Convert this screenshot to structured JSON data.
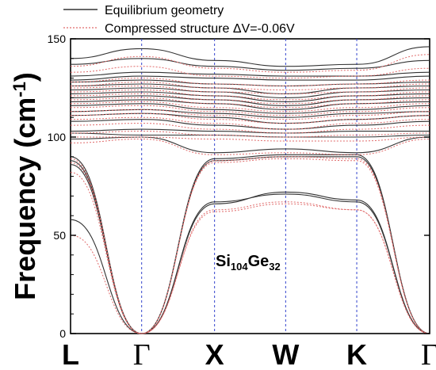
{
  "chart_data": {
    "type": "line",
    "ylabel_main": "Frequency (cm",
    "ylabel_sup": "-1",
    "ylabel_close": ")",
    "ylim": [
      0,
      150
    ],
    "y_ticks": [
      0,
      50,
      100,
      150
    ],
    "kpath": [
      "L",
      "Γ",
      "X",
      "W",
      "K",
      "Γ"
    ],
    "annotation": {
      "base1": "Si",
      "sub1": "104",
      "base2": "Ge",
      "sub2": "32"
    },
    "legend": [
      {
        "label": "Equilibrium geometry",
        "style": "solid"
      },
      {
        "label": "Compressed structure ΔV=-0.06V",
        "style": "dotted"
      }
    ],
    "series": [
      {
        "name": "Equilibrium geometry",
        "color": "#333333",
        "dash": "",
        "bands": [
          [
            58,
            0,
            66,
            72,
            68,
            0
          ],
          [
            86,
            0,
            67,
            71,
            67,
            0
          ],
          [
            88,
            0,
            88,
            90,
            90,
            0
          ],
          [
            90,
            0,
            89,
            91,
            91,
            0
          ],
          [
            99,
            100,
            92,
            94,
            92,
            100
          ],
          [
            102,
            101,
            101,
            100,
            100,
            101
          ],
          [
            103,
            104,
            103,
            102,
            103,
            103
          ],
          [
            108,
            109,
            106,
            104,
            106,
            108
          ],
          [
            111,
            112,
            110,
            107,
            109,
            111
          ],
          [
            113,
            114,
            112,
            110,
            112,
            113
          ],
          [
            116,
            117,
            114,
            112,
            114,
            116
          ],
          [
            118,
            119,
            117,
            114,
            117,
            118
          ],
          [
            120,
            121,
            119,
            116,
            119,
            120
          ],
          [
            122,
            123,
            121,
            118,
            121,
            122
          ],
          [
            124,
            125,
            123,
            120,
            123,
            124
          ],
          [
            126,
            127,
            125,
            122,
            125,
            126
          ],
          [
            128,
            129,
            127,
            126,
            127,
            128
          ],
          [
            129,
            131,
            130,
            129,
            129,
            131
          ],
          [
            131,
            133,
            132,
            131,
            131,
            133
          ],
          [
            137,
            140,
            136,
            134,
            135,
            139
          ],
          [
            140,
            145,
            139,
            136,
            137,
            146
          ]
        ]
      },
      {
        "name": "Compressed structure ΔV=-0.06V",
        "color": "#e06a6a",
        "dash": "2,2",
        "bands": [
          [
            50,
            0,
            62,
            66,
            63,
            0
          ],
          [
            82,
            0,
            63,
            67,
            63,
            0
          ],
          [
            87,
            0,
            87,
            89,
            88,
            0
          ],
          [
            89,
            0,
            88,
            90,
            89,
            0
          ],
          [
            97,
            99,
            91,
            92,
            91,
            99
          ],
          [
            100,
            100,
            99,
            98,
            98,
            100
          ],
          [
            102,
            103,
            101,
            100,
            101,
            102
          ],
          [
            106,
            107,
            104,
            102,
            104,
            106
          ],
          [
            109,
            110,
            107,
            104,
            107,
            109
          ],
          [
            111,
            112,
            109,
            107,
            109,
            111
          ],
          [
            113,
            114,
            111,
            109,
            111,
            113
          ],
          [
            115,
            116,
            113,
            111,
            113,
            115
          ],
          [
            117,
            118,
            115,
            113,
            115,
            117
          ],
          [
            119,
            120,
            117,
            115,
            117,
            119
          ],
          [
            121,
            122,
            119,
            117,
            119,
            121
          ],
          [
            123,
            124,
            121,
            119,
            121,
            123
          ],
          [
            125,
            126,
            123,
            122,
            123,
            125
          ],
          [
            126,
            128,
            125,
            124,
            125,
            127
          ],
          [
            128,
            130,
            127,
            126,
            127,
            129
          ],
          [
            133,
            136,
            131,
            130,
            131,
            135
          ],
          [
            136,
            141,
            135,
            133,
            134,
            142
          ]
        ]
      }
    ]
  }
}
